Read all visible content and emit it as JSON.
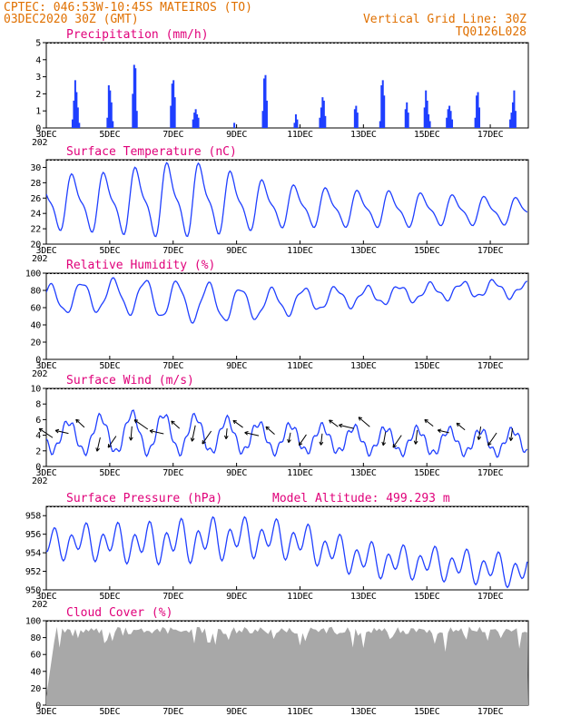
{
  "header": {
    "line1": "CPTEC:   046:53W-10:45S   MATEIROS (TO)",
    "line2": "03DEC2020 30Z (GMT)",
    "grid_note": "Vertical Grid Line: 30Z",
    "model": "TQ0126L028"
  },
  "colors": {
    "header": "#e07000",
    "titles": "#e0007a",
    "lines": "#1f3fff",
    "cloud": "#a8a8a8"
  },
  "x_axis": {
    "range_days": [
      3,
      18.2
    ],
    "ticks": [
      3,
      5,
      7,
      9,
      11,
      13,
      15,
      17
    ],
    "tick_labels": [
      "3DEC",
      "5DEC",
      "7DEC",
      "9DEC",
      "11DEC",
      "13DEC",
      "15DEC",
      "17DEC"
    ],
    "year_stub": "202"
  },
  "chart_data": [
    {
      "type": "bar",
      "title": "Precipitation (mm/h)",
      "ylim": [
        0,
        5
      ],
      "yticks": [
        0,
        1,
        2,
        3,
        4,
        5
      ],
      "groups": [
        {
          "day": 3.8,
          "vals": [
            0.5,
            1.6,
            2.8,
            2.1,
            1.2,
            0.3
          ]
        },
        {
          "day": 4.9,
          "vals": [
            0.6,
            2.5,
            2.2,
            1.5,
            0.4
          ]
        },
        {
          "day": 5.7,
          "vals": [
            2.0,
            3.7,
            3.5,
            1.0
          ]
        },
        {
          "day": 6.9,
          "vals": [
            1.3,
            2.6,
            2.8,
            1.8
          ]
        },
        {
          "day": 7.6,
          "vals": [
            0.5,
            0.9,
            1.1,
            0.8,
            0.6
          ]
        },
        {
          "day": 8.9,
          "vals": [
            0.3
          ]
        },
        {
          "day": 9.8,
          "vals": [
            1.0,
            2.9,
            3.1,
            1.6
          ]
        },
        {
          "day": 10.8,
          "vals": [
            0.3,
            0.8,
            0.5
          ]
        },
        {
          "day": 11.6,
          "vals": [
            0.6,
            1.2,
            1.8,
            1.6,
            0.7
          ]
        },
        {
          "day": 12.7,
          "vals": [
            1.1,
            1.3,
            0.9
          ]
        },
        {
          "day": 13.5,
          "vals": [
            0.4,
            2.5,
            2.8,
            1.9
          ]
        },
        {
          "day": 14.3,
          "vals": [
            1.1,
            1.5,
            0.9
          ]
        },
        {
          "day": 14.9,
          "vals": [
            1.2,
            2.2,
            1.6,
            0.8,
            0.4
          ]
        },
        {
          "day": 15.6,
          "vals": [
            0.6,
            1.1,
            1.3,
            1.0,
            0.5
          ]
        },
        {
          "day": 16.5,
          "vals": [
            0.6,
            1.9,
            2.1,
            1.2
          ]
        },
        {
          "day": 17.6,
          "vals": [
            0.5,
            0.9,
            1.5,
            2.2,
            1.0
          ]
        }
      ]
    },
    {
      "type": "line",
      "title": "Surface Temperature (nC)",
      "ylim": [
        20,
        31
      ],
      "yticks": [
        20,
        22,
        24,
        26,
        28,
        30
      ],
      "mean": [
        25.5,
        25.4,
        25.4,
        25.6,
        25.8,
        25.8,
        25.4,
        25.1,
        24.9,
        24.7,
        24.6,
        24.5,
        24.5,
        24.4,
        24.3,
        24.3
      ],
      "amp": [
        3.1,
        3.2,
        3.4,
        3.9,
        4.2,
        4.0,
        3.3,
        2.6,
        2.3,
        2.2,
        2.0,
        2.1,
        1.8,
        1.7,
        1.6,
        1.5
      ],
      "phase": 0.62
    },
    {
      "type": "line",
      "title": "Relative Humidity (%)",
      "ylim": [
        0,
        100
      ],
      "yticks": [
        0,
        20,
        40,
        60,
        80,
        100
      ],
      "mean": [
        69,
        72,
        74,
        72,
        68,
        66,
        64,
        65,
        68,
        71,
        73,
        75,
        78,
        80,
        82,
        80
      ],
      "amp": [
        16,
        17,
        18,
        20,
        22,
        22,
        19,
        16,
        14,
        12,
        10,
        10,
        9,
        9,
        9,
        8
      ],
      "phase": 0.12
    },
    {
      "type": "line",
      "title": "Surface Wind (m/s)",
      "ylim": [
        0,
        10
      ],
      "yticks": [
        0,
        2,
        4,
        6,
        8,
        10
      ],
      "mean": [
        3.8,
        3.8,
        4.2,
        4.3,
        4.2,
        4.1,
        3.9,
        3.6,
        3.6,
        3.5,
        3.4,
        3.3,
        3.2,
        3.2,
        3.1,
        3.2
      ],
      "amp": [
        1.8,
        2.0,
        2.4,
        2.6,
        2.4,
        2.3,
        2.0,
        1.8,
        1.7,
        1.6,
        1.6,
        1.6,
        1.6,
        1.5,
        1.5,
        1.5
      ],
      "phase": 0.45,
      "arrows": {
        "value": 4.5,
        "length_mps": 2.6
      }
    },
    {
      "type": "line",
      "title": "Surface Pressure (hPa)",
      "subtitle": "Model Altitude: 499.293 m",
      "ylim": [
        950,
        959
      ],
      "yticks": [
        950,
        952,
        954,
        956,
        958
      ],
      "mean": [
        954.8,
        955.2,
        955.1,
        955.0,
        955.2,
        955.4,
        955.6,
        955.6,
        955.2,
        954.2,
        953.3,
        953.0,
        952.9,
        952.6,
        952.3,
        952.0
      ],
      "amp": [
        1.2,
        1.4,
        1.5,
        1.6,
        1.7,
        1.7,
        1.6,
        1.5,
        1.5,
        1.4,
        1.4,
        1.3,
        1.3,
        1.3,
        1.3,
        1.3
      ],
      "phase": 0.15
    },
    {
      "type": "area",
      "title": "Cloud Cover (%)",
      "ylim": [
        0,
        100
      ],
      "yticks": [
        0,
        20,
        40,
        60,
        80,
        100
      ],
      "level": 89
    }
  ]
}
